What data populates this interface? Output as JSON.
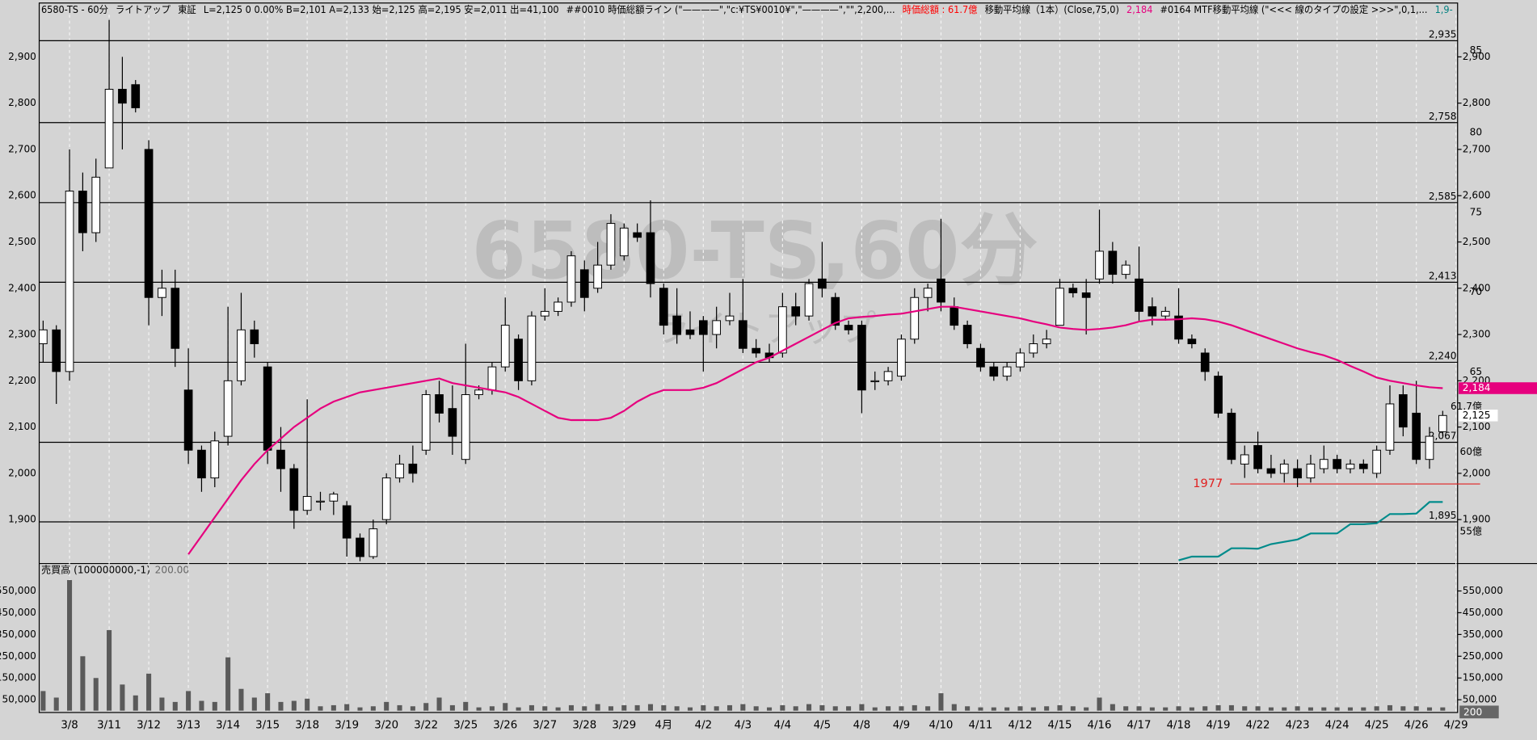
{
  "header": [
    {
      "text": "6580-TS - 60分",
      "color": "#000000"
    },
    {
      "text": "ライトアップ",
      "color": "#000000"
    },
    {
      "text": "東証",
      "color": "#000000"
    },
    {
      "text": "L=2,125  0  0.00%  B=2,101  A=2,133  始=2,125  高=2,195  安=2,011  出=41,100",
      "color": "#000000"
    },
    {
      "text": "##0010 時価総額ライン (\"————\",\"c:¥TS¥0010¥\",\"————\",\"\",2,200,...",
      "color": "#000000"
    },
    {
      "text": "時価総額 : 61.7億",
      "color": "#ff0000"
    },
    {
      "text": "移動平均線（1本）(Close,75,0)",
      "color": "#000000"
    },
    {
      "text": "2,184",
      "color": "#e6007e"
    },
    {
      "text": "#0164 MTF移動平均線 (\"<<< 線のタイプの設定 >>>\",0,1,...",
      "color": "#000000"
    },
    {
      "text": "1,9-",
      "color": "#008080"
    }
  ],
  "chart_data": [
    {
      "type": "candlestick",
      "watermark": "6580-TS,60分",
      "watermark_sub": "ライトアップ",
      "categories": [
        null,
        null,
        "3/8",
        null,
        null,
        "3/11",
        null,
        null,
        "3/12",
        null,
        null,
        "3/13",
        null,
        null,
        "3/14",
        null,
        null,
        "3/15",
        null,
        null,
        "3/18",
        null,
        null,
        "3/19",
        null,
        null,
        "3/20",
        null,
        null,
        "3/22",
        null,
        null,
        "3/25",
        null,
        null,
        "3/26",
        null,
        null,
        "3/27",
        null,
        null,
        "3/28",
        null,
        null,
        "3/29",
        null,
        null,
        "4月",
        null,
        null,
        "4/2",
        null,
        null,
        "4/3",
        null,
        null,
        "4/4",
        null,
        null,
        "4/5",
        null,
        null,
        "4/8",
        null,
        null,
        "4/9",
        null,
        null,
        "4/10",
        null,
        null,
        "4/11",
        null,
        null,
        "4/12",
        null,
        null,
        "4/15",
        null,
        null,
        "4/16",
        null,
        null,
        "4/17",
        null,
        null,
        "4/18",
        null,
        null,
        "4/19",
        null,
        null,
        "4/22",
        null,
        null,
        "4/23",
        null,
        null,
        "4/24",
        null,
        null,
        "4/25",
        null,
        null,
        "4/26",
        null,
        null,
        "4/29"
      ],
      "open": [
        2280,
        2310,
        2220,
        2610,
        2520,
        2660,
        2830,
        2840,
        2700,
        2380,
        2400,
        2180,
        2050,
        1990,
        2080,
        2200,
        2310,
        2230,
        2050,
        2010,
        1920,
        1940,
        1940,
        1930,
        1860,
        1820,
        1900,
        1990,
        2020,
        2050,
        2170,
        2140,
        2030,
        2170,
        2180,
        2230,
        2290,
        2200,
        2340,
        2350,
        2370,
        2440,
        2400,
        2450,
        2470,
        2520,
        2520,
        2400,
        2340,
        2310,
        2330,
        2300,
        2330,
        2330,
        2270,
        2260,
        2260,
        2360,
        2340,
        2420,
        2380,
        2320,
        2320,
        2200,
        2200,
        2210,
        2290,
        2380,
        2420,
        2360,
        2320,
        2270,
        2230,
        2210,
        2230,
        2260,
        2280,
        2320,
        2400,
        2390,
        2420,
        2480,
        2430,
        2420,
        2360,
        2340,
        2340,
        2290,
        2260,
        2210,
        2130,
        2020,
        2060,
        2010,
        2000,
        2010,
        1990,
        2010,
        2030,
        2010,
        2020,
        2000,
        2050,
        2170,
        2130,
        2030,
        2090,
        null
      ],
      "high": [
        2330,
        2320,
        2700,
        2650,
        2680,
        2980,
        2900,
        2850,
        2720,
        2440,
        2440,
        2270,
        2060,
        2090,
        2360,
        2390,
        2330,
        2240,
        2100,
        2020,
        2160,
        1960,
        1960,
        1940,
        1870,
        1900,
        2000,
        2040,
        2060,
        2180,
        2200,
        2190,
        2280,
        2190,
        2240,
        2380,
        2300,
        2350,
        2400,
        2380,
        2480,
        2460,
        2500,
        2560,
        2540,
        2540,
        2590,
        2410,
        2400,
        2350,
        2340,
        2360,
        2390,
        2420,
        2290,
        2280,
        2390,
        2390,
        2420,
        2500,
        2390,
        2330,
        2330,
        2220,
        2230,
        2300,
        2400,
        2410,
        2550,
        2380,
        2330,
        2280,
        2240,
        2240,
        2270,
        2300,
        2310,
        2420,
        2410,
        2420,
        2570,
        2500,
        2460,
        2490,
        2380,
        2360,
        2400,
        2300,
        2270,
        2220,
        2140,
        2060,
        2090,
        2040,
        2030,
        2030,
        2040,
        2060,
        2040,
        2030,
        2030,
        2060,
        2190,
        2190,
        2200,
        2100,
        2135,
        null
      ],
      "low": [
        2240,
        2150,
        2200,
        2480,
        2500,
        2660,
        2700,
        2780,
        2320,
        2340,
        2230,
        2020,
        1960,
        1970,
        2060,
        2190,
        2250,
        2020,
        1960,
        1880,
        1910,
        1920,
        1910,
        1820,
        1810,
        1815,
        1890,
        1980,
        1980,
        2040,
        2110,
        2040,
        2020,
        2160,
        2170,
        2220,
        2180,
        2190,
        2330,
        2340,
        2360,
        2350,
        2390,
        2440,
        2460,
        2500,
        2380,
        2300,
        2280,
        2290,
        2220,
        2270,
        2320,
        2260,
        2250,
        2240,
        2250,
        2320,
        2330,
        2380,
        2310,
        2300,
        2130,
        2180,
        2190,
        2200,
        2280,
        2350,
        2350,
        2310,
        2270,
        2220,
        2200,
        2200,
        2220,
        2250,
        2270,
        2320,
        2380,
        2300,
        2410,
        2410,
        2420,
        2330,
        2320,
        2330,
        2280,
        2270,
        2200,
        2120,
        2020,
        1990,
        2000,
        1990,
        1980,
        1970,
        1980,
        2000,
        2000,
        2000,
        2000,
        1990,
        2040,
        2080,
        2020,
        2010,
        2080,
        null
      ],
      "close": [
        2310,
        2220,
        2610,
        2520,
        2640,
        2830,
        2800,
        2790,
        2380,
        2400,
        2270,
        2050,
        1990,
        2070,
        2200,
        2310,
        2280,
        2050,
        2010,
        1920,
        1950,
        1940,
        1955,
        1860,
        1820,
        1880,
        1990,
        2020,
        2000,
        2170,
        2130,
        2080,
        2170,
        2180,
        2230,
        2320,
        2200,
        2340,
        2350,
        2370,
        2470,
        2380,
        2450,
        2540,
        2530,
        2510,
        2410,
        2320,
        2300,
        2300,
        2300,
        2330,
        2340,
        2270,
        2260,
        2250,
        2360,
        2340,
        2410,
        2400,
        2320,
        2310,
        2180,
        2200,
        2220,
        2290,
        2380,
        2400,
        2370,
        2320,
        2280,
        2230,
        2210,
        2230,
        2260,
        2280,
        2290,
        2400,
        2390,
        2380,
        2480,
        2430,
        2450,
        2350,
        2340,
        2350,
        2290,
        2280,
        2220,
        2130,
        2030,
        2040,
        2010,
        2000,
        2020,
        1990,
        2020,
        2030,
        2010,
        2020,
        2010,
        2050,
        2150,
        2100,
        2030,
        2080,
        2125,
        null
      ],
      "lines": [
        {
          "color": "#e6007e",
          "values": [
            null,
            null,
            null,
            null,
            null,
            null,
            null,
            null,
            null,
            null,
            null,
            1825,
            1865,
            1905,
            1945,
            1985,
            2020,
            2050,
            2075,
            2100,
            2120,
            2140,
            2155,
            2165,
            2175,
            2180,
            2185,
            2190,
            2195,
            2200,
            2205,
            2195,
            2190,
            2185,
            2180,
            2175,
            2165,
            2150,
            2135,
            2120,
            2115,
            2115,
            2115,
            2120,
            2135,
            2155,
            2170,
            2180,
            2180,
            2180,
            2185,
            2195,
            2210,
            2225,
            2240,
            2250,
            2265,
            2280,
            2295,
            2310,
            2325,
            2335,
            2338,
            2340,
            2343,
            2345,
            2350,
            2355,
            2360,
            2360,
            2355,
            2350,
            2345,
            2340,
            2335,
            2328,
            2322,
            2315,
            2312,
            2310,
            2312,
            2315,
            2320,
            2328,
            2332,
            2332,
            2333,
            2335,
            2333,
            2328,
            2320,
            2310,
            2300,
            2290,
            2280,
            2270,
            2262,
            2255,
            2245,
            2232,
            2220,
            2207,
            2200,
            2195,
            2190,
            2186,
            2184,
            null
          ]
        },
        {
          "color": "#008b8b",
          "values": [
            null,
            null,
            null,
            null,
            null,
            null,
            null,
            null,
            null,
            null,
            null,
            null,
            null,
            null,
            null,
            null,
            null,
            null,
            null,
            null,
            null,
            null,
            null,
            null,
            null,
            null,
            null,
            null,
            null,
            null,
            null,
            null,
            null,
            null,
            null,
            null,
            null,
            null,
            null,
            null,
            null,
            null,
            null,
            null,
            null,
            null,
            null,
            null,
            null,
            null,
            null,
            null,
            null,
            null,
            null,
            null,
            null,
            null,
            null,
            null,
            null,
            null,
            null,
            null,
            null,
            null,
            null,
            null,
            null,
            null,
            null,
            null,
            null,
            null,
            null,
            null,
            null,
            null,
            null,
            null,
            null,
            null,
            null,
            null,
            null,
            null,
            1812,
            1820,
            1820,
            1820,
            1838,
            1838,
            1837,
            1847,
            1852,
            1857,
            1870,
            1870,
            1870,
            1890,
            1890,
            1892,
            1912,
            1912,
            1913,
            1938,
            1938,
            null
          ]
        }
      ],
      "levels": [
        {
          "value": 2935,
          "label": "2,935",
          "cap": "85"
        },
        {
          "value": 2758,
          "label": "2,758",
          "cap": "80"
        },
        {
          "value": 2585,
          "label": "2,585",
          "cap": "75"
        },
        {
          "value": 2413,
          "label": "2,413",
          "cap": "70"
        },
        {
          "value": 2240,
          "label": "2,240",
          "cap": "65"
        },
        {
          "value": 2067,
          "label": "2,067",
          "cap": "60億"
        },
        {
          "value": 1895,
          "label": "1,895",
          "cap": "55億"
        }
      ],
      "support": {
        "value": 1977,
        "label": "1977",
        "color": "#e02020"
      },
      "ma_tag": {
        "value": 2184,
        "label": "2,184",
        "color": "#e6007e"
      },
      "price_tag": {
        "value": 2125,
        "label": "2,125"
      },
      "cap_label": "61.7億",
      "ylim": [
        1805,
        2991
      ],
      "yticks": [
        {
          "value": 1900,
          "label": "1,900"
        },
        {
          "value": 2000,
          "label": "2,000"
        },
        {
          "value": 2100,
          "label": "2,100"
        },
        {
          "value": 2200,
          "label": "2,200"
        },
        {
          "value": 2300,
          "label": "2,300"
        },
        {
          "value": 2400,
          "label": "2,400"
        },
        {
          "value": 2500,
          "label": "2,500"
        },
        {
          "value": 2600,
          "label": "2,600"
        },
        {
          "value": 2700,
          "label": "2,700"
        },
        {
          "value": 2800,
          "label": "2,800"
        },
        {
          "value": 2900,
          "label": "2,900"
        }
      ]
    },
    {
      "type": "bar",
      "title": "売買高 (100000000,-1)",
      "subtitle": "200.00",
      "corner_label": "200",
      "color": "#5a5a5a",
      "values": [
        90000,
        60000,
        600000,
        250000,
        150000,
        370000,
        120000,
        70000,
        170000,
        60000,
        40000,
        90000,
        45000,
        40000,
        245000,
        100000,
        60000,
        80000,
        40000,
        45000,
        55000,
        20000,
        25000,
        30000,
        15000,
        20000,
        40000,
        25000,
        20000,
        35000,
        60000,
        25000,
        40000,
        15000,
        20000,
        35000,
        15000,
        25000,
        20000,
        15000,
        25000,
        20000,
        30000,
        20000,
        25000,
        25000,
        30000,
        25000,
        20000,
        15000,
        25000,
        20000,
        25000,
        30000,
        20000,
        15000,
        25000,
        20000,
        30000,
        25000,
        20000,
        20000,
        30000,
        15000,
        20000,
        20000,
        25000,
        20000,
        80000,
        30000,
        20000,
        15000,
        15000,
        15000,
        20000,
        15000,
        20000,
        25000,
        20000,
        15000,
        60000,
        30000,
        20000,
        20000,
        15000,
        15000,
        20000,
        15000,
        20000,
        25000,
        25000,
        20000,
        20000,
        15000,
        15000,
        20000,
        15000,
        15000,
        15000,
        15000,
        15000,
        20000,
        25000,
        20000,
        20000,
        15000,
        15000,
        null
      ],
      "ylim": [
        -8500,
        676000
      ],
      "yticks": [
        {
          "value": 50000,
          "label": "50,000"
        },
        {
          "value": 150000,
          "label": "150,000"
        },
        {
          "value": 250000,
          "label": "250,000"
        },
        {
          "value": 350000,
          "label": "350,000"
        },
        {
          "value": 450000,
          "label": "450,000"
        },
        {
          "value": 550000,
          "label": "550,000"
        }
      ]
    }
  ]
}
